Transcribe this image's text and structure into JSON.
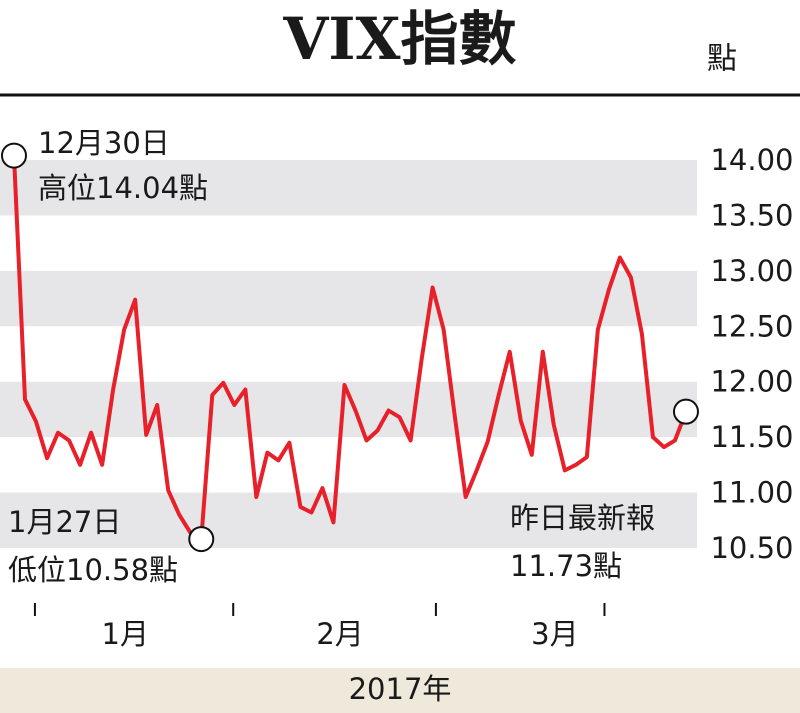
{
  "chart_data": {
    "type": "line",
    "title": "VIX指數",
    "unit": "點",
    "x_label": "2017年",
    "color": "#e8202a",
    "x": [
      0,
      1,
      2,
      3,
      4,
      5,
      6,
      7,
      8,
      9,
      10,
      11,
      12,
      13,
      14,
      15,
      16,
      17,
      18,
      19,
      20,
      21,
      22,
      23,
      24,
      25,
      26,
      27,
      28,
      29,
      30,
      31,
      32,
      33,
      34,
      35,
      36,
      37,
      38,
      39,
      40,
      41,
      42,
      43,
      44,
      45,
      46,
      47,
      48,
      49,
      50,
      51,
      52,
      53,
      54,
      55,
      56,
      57,
      58,
      59,
      60,
      61
    ],
    "values": [
      14.04,
      11.84,
      11.64,
      11.31,
      11.54,
      11.47,
      11.25,
      11.54,
      11.25,
      11.93,
      12.47,
      12.74,
      11.52,
      11.79,
      11.02,
      10.8,
      10.64,
      10.58,
      11.88,
      11.99,
      11.79,
      11.93,
      10.96,
      11.36,
      11.29,
      11.45,
      10.87,
      10.82,
      11.04,
      10.73,
      11.97,
      11.74,
      11.47,
      11.56,
      11.74,
      11.68,
      11.47,
      12.2,
      12.85,
      12.47,
      11.7,
      10.96,
      11.2,
      11.46,
      11.88,
      12.27,
      11.65,
      11.34,
      12.27,
      11.61,
      11.2,
      11.25,
      11.32,
      12.47,
      12.83,
      13.12,
      12.94,
      12.43,
      11.5,
      11.41,
      11.47,
      11.73
    ],
    "xlim": [
      -1.27,
      62
    ],
    "xticks": [
      1.9,
      19.9,
      38.3,
      53.6
    ],
    "month_labels": [
      {
        "value": 10.1,
        "label": "1月"
      },
      {
        "value": 29.6,
        "label": "2月"
      },
      {
        "value": 49.1,
        "label": "3月"
      }
    ],
    "ylim": [
      10.0,
      14.5
    ],
    "yticks": [
      {
        "value": 14,
        "label": "14.00"
      },
      {
        "value": 13.5,
        "label": "13.50"
      },
      {
        "value": 13,
        "label": "13.00"
      },
      {
        "value": 12.5,
        "label": "12.50"
      },
      {
        "value": 12,
        "label": "12.00"
      },
      {
        "value": 11.5,
        "label": "11.50"
      },
      {
        "value": 11,
        "label": "11.00"
      },
      {
        "value": 10.5,
        "label": "10.50"
      }
    ],
    "bands": true,
    "annotations": [
      "12月30日",
      "高位14.04點",
      "1月27日",
      "低位10.58點",
      "昨日最新報",
      "11.73點"
    ]
  }
}
